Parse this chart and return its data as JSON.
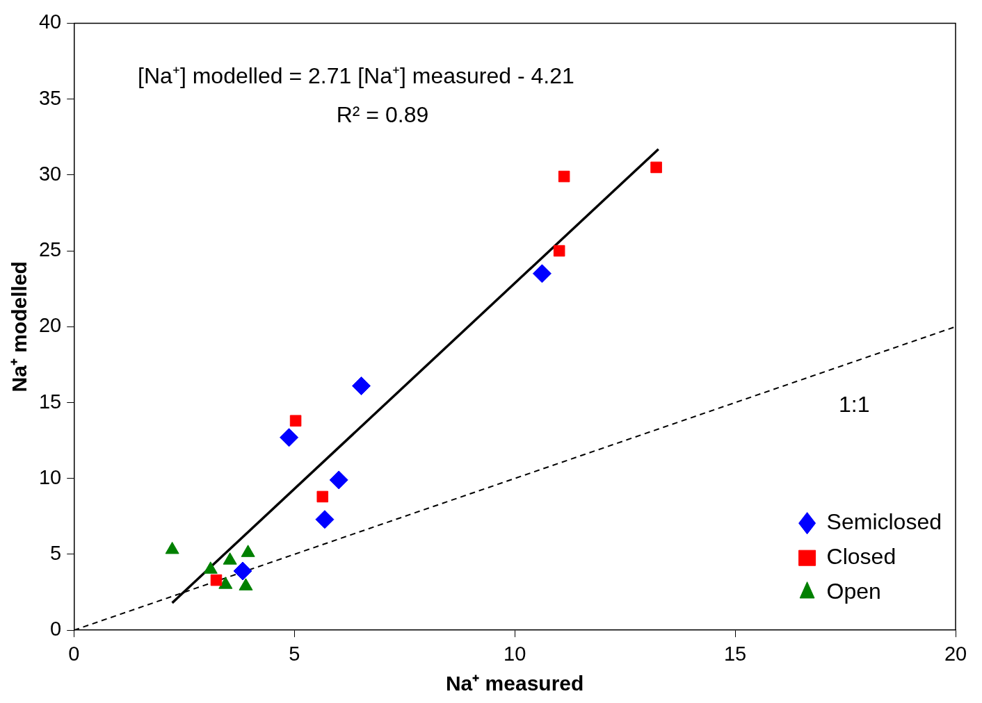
{
  "chart_data": {
    "type": "scatter",
    "xlabel": "Na⁺ measured",
    "ylabel": "Na⁺ modelled",
    "xlim": [
      0,
      20
    ],
    "xticks": [
      0,
      5,
      10,
      15,
      20
    ],
    "ylim": [
      0,
      40
    ],
    "yticks": [
      0,
      5,
      10,
      15,
      20,
      25,
      30,
      35,
      40
    ],
    "grid": false,
    "legend": "bottom right",
    "series": [
      {
        "name": "Semiclosed",
        "color": "#0000ff",
        "marker": "diamond",
        "x": [
          4.88,
          6.52,
          6.01,
          5.69,
          10.62,
          3.83
        ],
        "values": [
          12.7,
          16.1,
          9.9,
          7.3,
          23.5,
          3.9
        ]
      },
      {
        "name": "Closed",
        "color": "#ff0000",
        "marker": "square",
        "x": [
          5.03,
          5.64,
          11.12,
          13.21,
          11.01,
          3.23
        ],
        "values": [
          13.8,
          8.8,
          29.9,
          30.5,
          25.0,
          3.3
        ]
      },
      {
        "name": "Open",
        "color": "#008000",
        "marker": "triangle",
        "x": [
          2.23,
          3.1,
          3.54,
          3.95,
          3.44,
          3.9
        ],
        "values": [
          5.3,
          4.0,
          4.6,
          5.1,
          3.0,
          2.9
        ]
      },
      {
        "type": "line",
        "color": "#000000",
        "line_style": "solid",
        "x": [
          2.23,
          13.26
        ],
        "values": [
          1.8,
          31.7
        ]
      },
      {
        "type": "line",
        "color": "#000000",
        "line_style": "dashed",
        "x": [
          0,
          20
        ],
        "values": [
          0,
          20
        ]
      }
    ],
    "annotations": [
      "[Na⁺] modelled = 2.71 [Na⁺] measured - 4.21",
      "R² = 0.89",
      "1:1"
    ]
  }
}
